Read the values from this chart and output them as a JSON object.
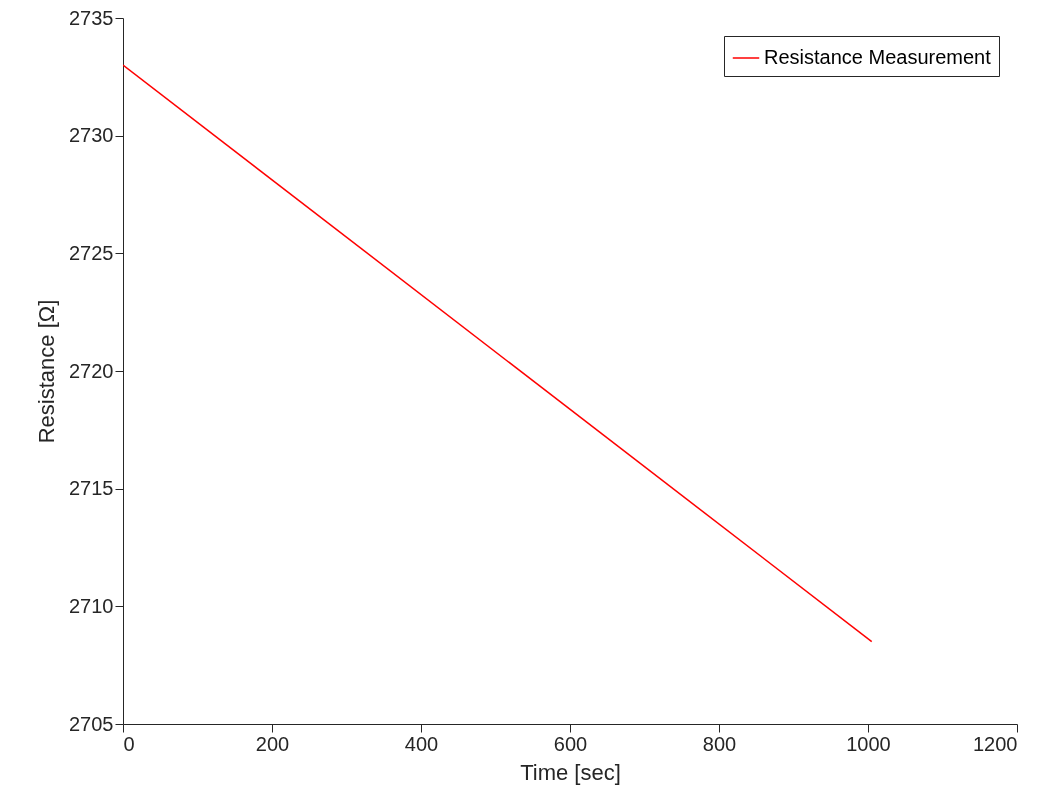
{
  "chart_data": {
    "type": "line",
    "xlabel": "Time [sec]",
    "ylabel": "Resistance [Ω]",
    "x": [
      0,
      1005
    ],
    "series": [
      {
        "name": "Resistance Measurement",
        "color": "#ff0000",
        "values": [
          2733,
          2708.5
        ]
      }
    ],
    "xlim": [
      0,
      1200
    ],
    "xticks": [
      0,
      200,
      400,
      600,
      800,
      1000,
      1200
    ],
    "ylim": [
      2705,
      2735
    ],
    "yticks": [
      2705,
      2710,
      2715,
      2720,
      2725,
      2730,
      2735
    ],
    "grid": false,
    "legend": "top right"
  }
}
